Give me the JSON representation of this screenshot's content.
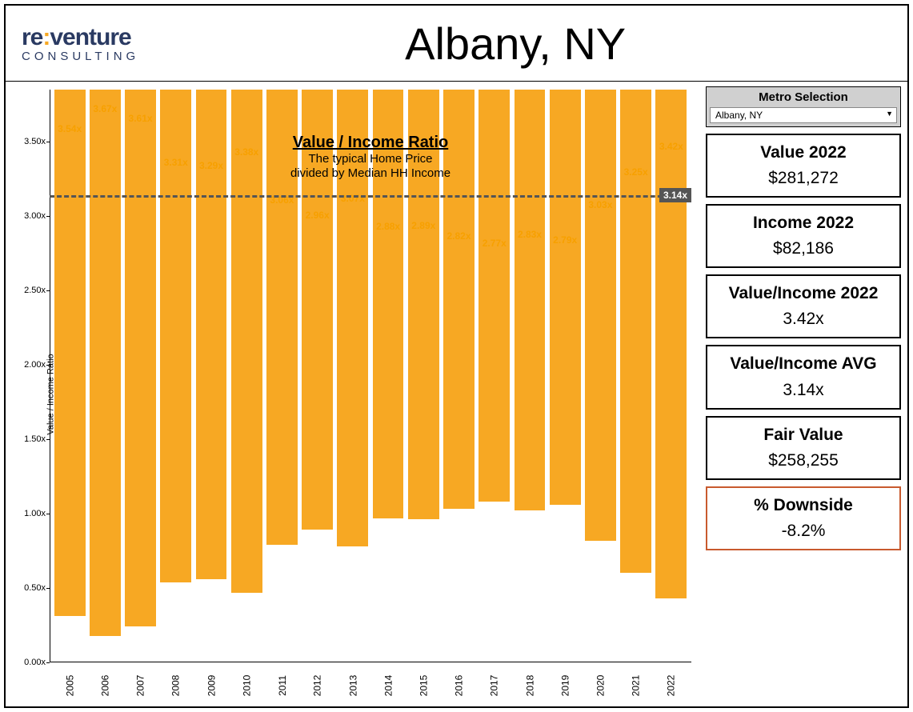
{
  "logo": {
    "left": "re",
    "colon": ":",
    "right": "venture",
    "sub": "CONSULTING",
    "color": "#2a3a62",
    "accent": "#f7a823"
  },
  "title": "Albany, NY",
  "selector": {
    "label": "Metro Selection",
    "value": "Albany, NY"
  },
  "stats": [
    {
      "label": "Value 2022",
      "value": "$281,272"
    },
    {
      "label": "Income 2022",
      "value": "$82,186"
    },
    {
      "label": "Value/Income 2022",
      "value": "3.42x"
    },
    {
      "label": "Value/Income AVG",
      "value": "3.14x"
    },
    {
      "label": "Fair Value",
      "value": "$258,255"
    },
    {
      "label": "% Downside",
      "value": "-8.2%",
      "highlight": true
    }
  ],
  "chart": {
    "type": "bar",
    "y_axis_label": "Value / Income Ratio",
    "title_main": "Value / Income Ratio",
    "title_sub1": "The typical Home Price",
    "title_sub2": "divided by Median HH Income",
    "y_min": 0.0,
    "y_max": 3.85,
    "y_ticks": [
      0.0,
      0.5,
      1.0,
      1.5,
      2.0,
      2.5,
      3.0,
      3.5
    ],
    "y_tick_format_suffix": "x",
    "bar_color": "#f7a823",
    "label_color": "#f7a000",
    "avg_line": {
      "value": 3.14,
      "label": "3.14x",
      "color": "#555555"
    },
    "background_color": "#ffffff",
    "categories": [
      "2005",
      "2006",
      "2007",
      "2008",
      "2009",
      "2010",
      "2011",
      "2012",
      "2013",
      "2014",
      "2015",
      "2016",
      "2017",
      "2018",
      "2019",
      "2020",
      "2021",
      "2022"
    ],
    "values": [
      3.54,
      3.67,
      3.61,
      3.31,
      3.29,
      3.38,
      3.06,
      2.96,
      3.07,
      2.88,
      2.89,
      2.82,
      2.77,
      2.83,
      2.79,
      3.03,
      3.25,
      3.42
    ],
    "value_labels": [
      "3.54x",
      "3.67x",
      "3.61x",
      "3.31x",
      "3.29x",
      "3.38x",
      "3.06x",
      "2.96x",
      "3.07x",
      "2.88x",
      "2.89x",
      "2.82x",
      "2.77x",
      "2.83x",
      "2.79x",
      "3.03x",
      "3.25x",
      "3.42x"
    ]
  }
}
